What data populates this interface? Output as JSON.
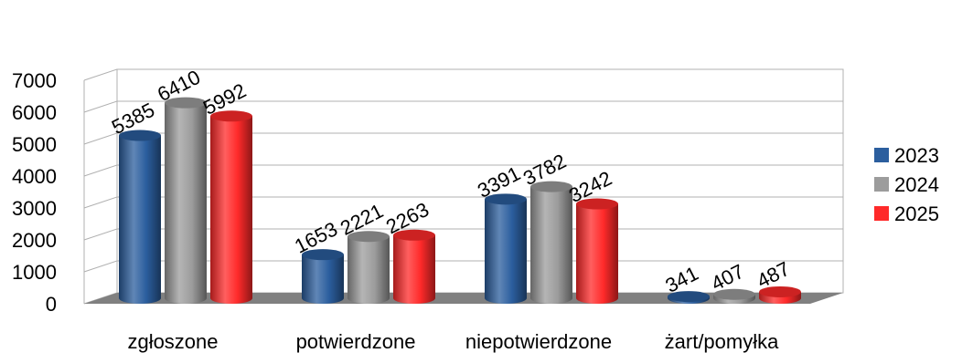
{
  "chart_data": {
    "type": "bar",
    "style": "3d-cylinder",
    "categories": [
      "zgłoszone",
      "potwierdzone",
      "niepotwierdzone",
      "żart/pomyłka"
    ],
    "series": [
      {
        "name": "2023",
        "color": "#2B5E9E",
        "values": [
          5385,
          1653,
          3391,
          341
        ]
      },
      {
        "name": "2024",
        "color": "#9C9C9C",
        "values": [
          6410,
          2221,
          3782,
          407
        ]
      },
      {
        "name": "2025",
        "color": "#FF2A2A",
        "values": [
          5992,
          2263,
          3242,
          487
        ]
      }
    ],
    "ylim": [
      0,
      7000
    ],
    "yticks": [
      "0",
      "1000",
      "2000",
      "3000",
      "4000",
      "5000",
      "6000",
      "7000"
    ],
    "grid": true,
    "legend": "right",
    "floor_color": "#808080"
  }
}
